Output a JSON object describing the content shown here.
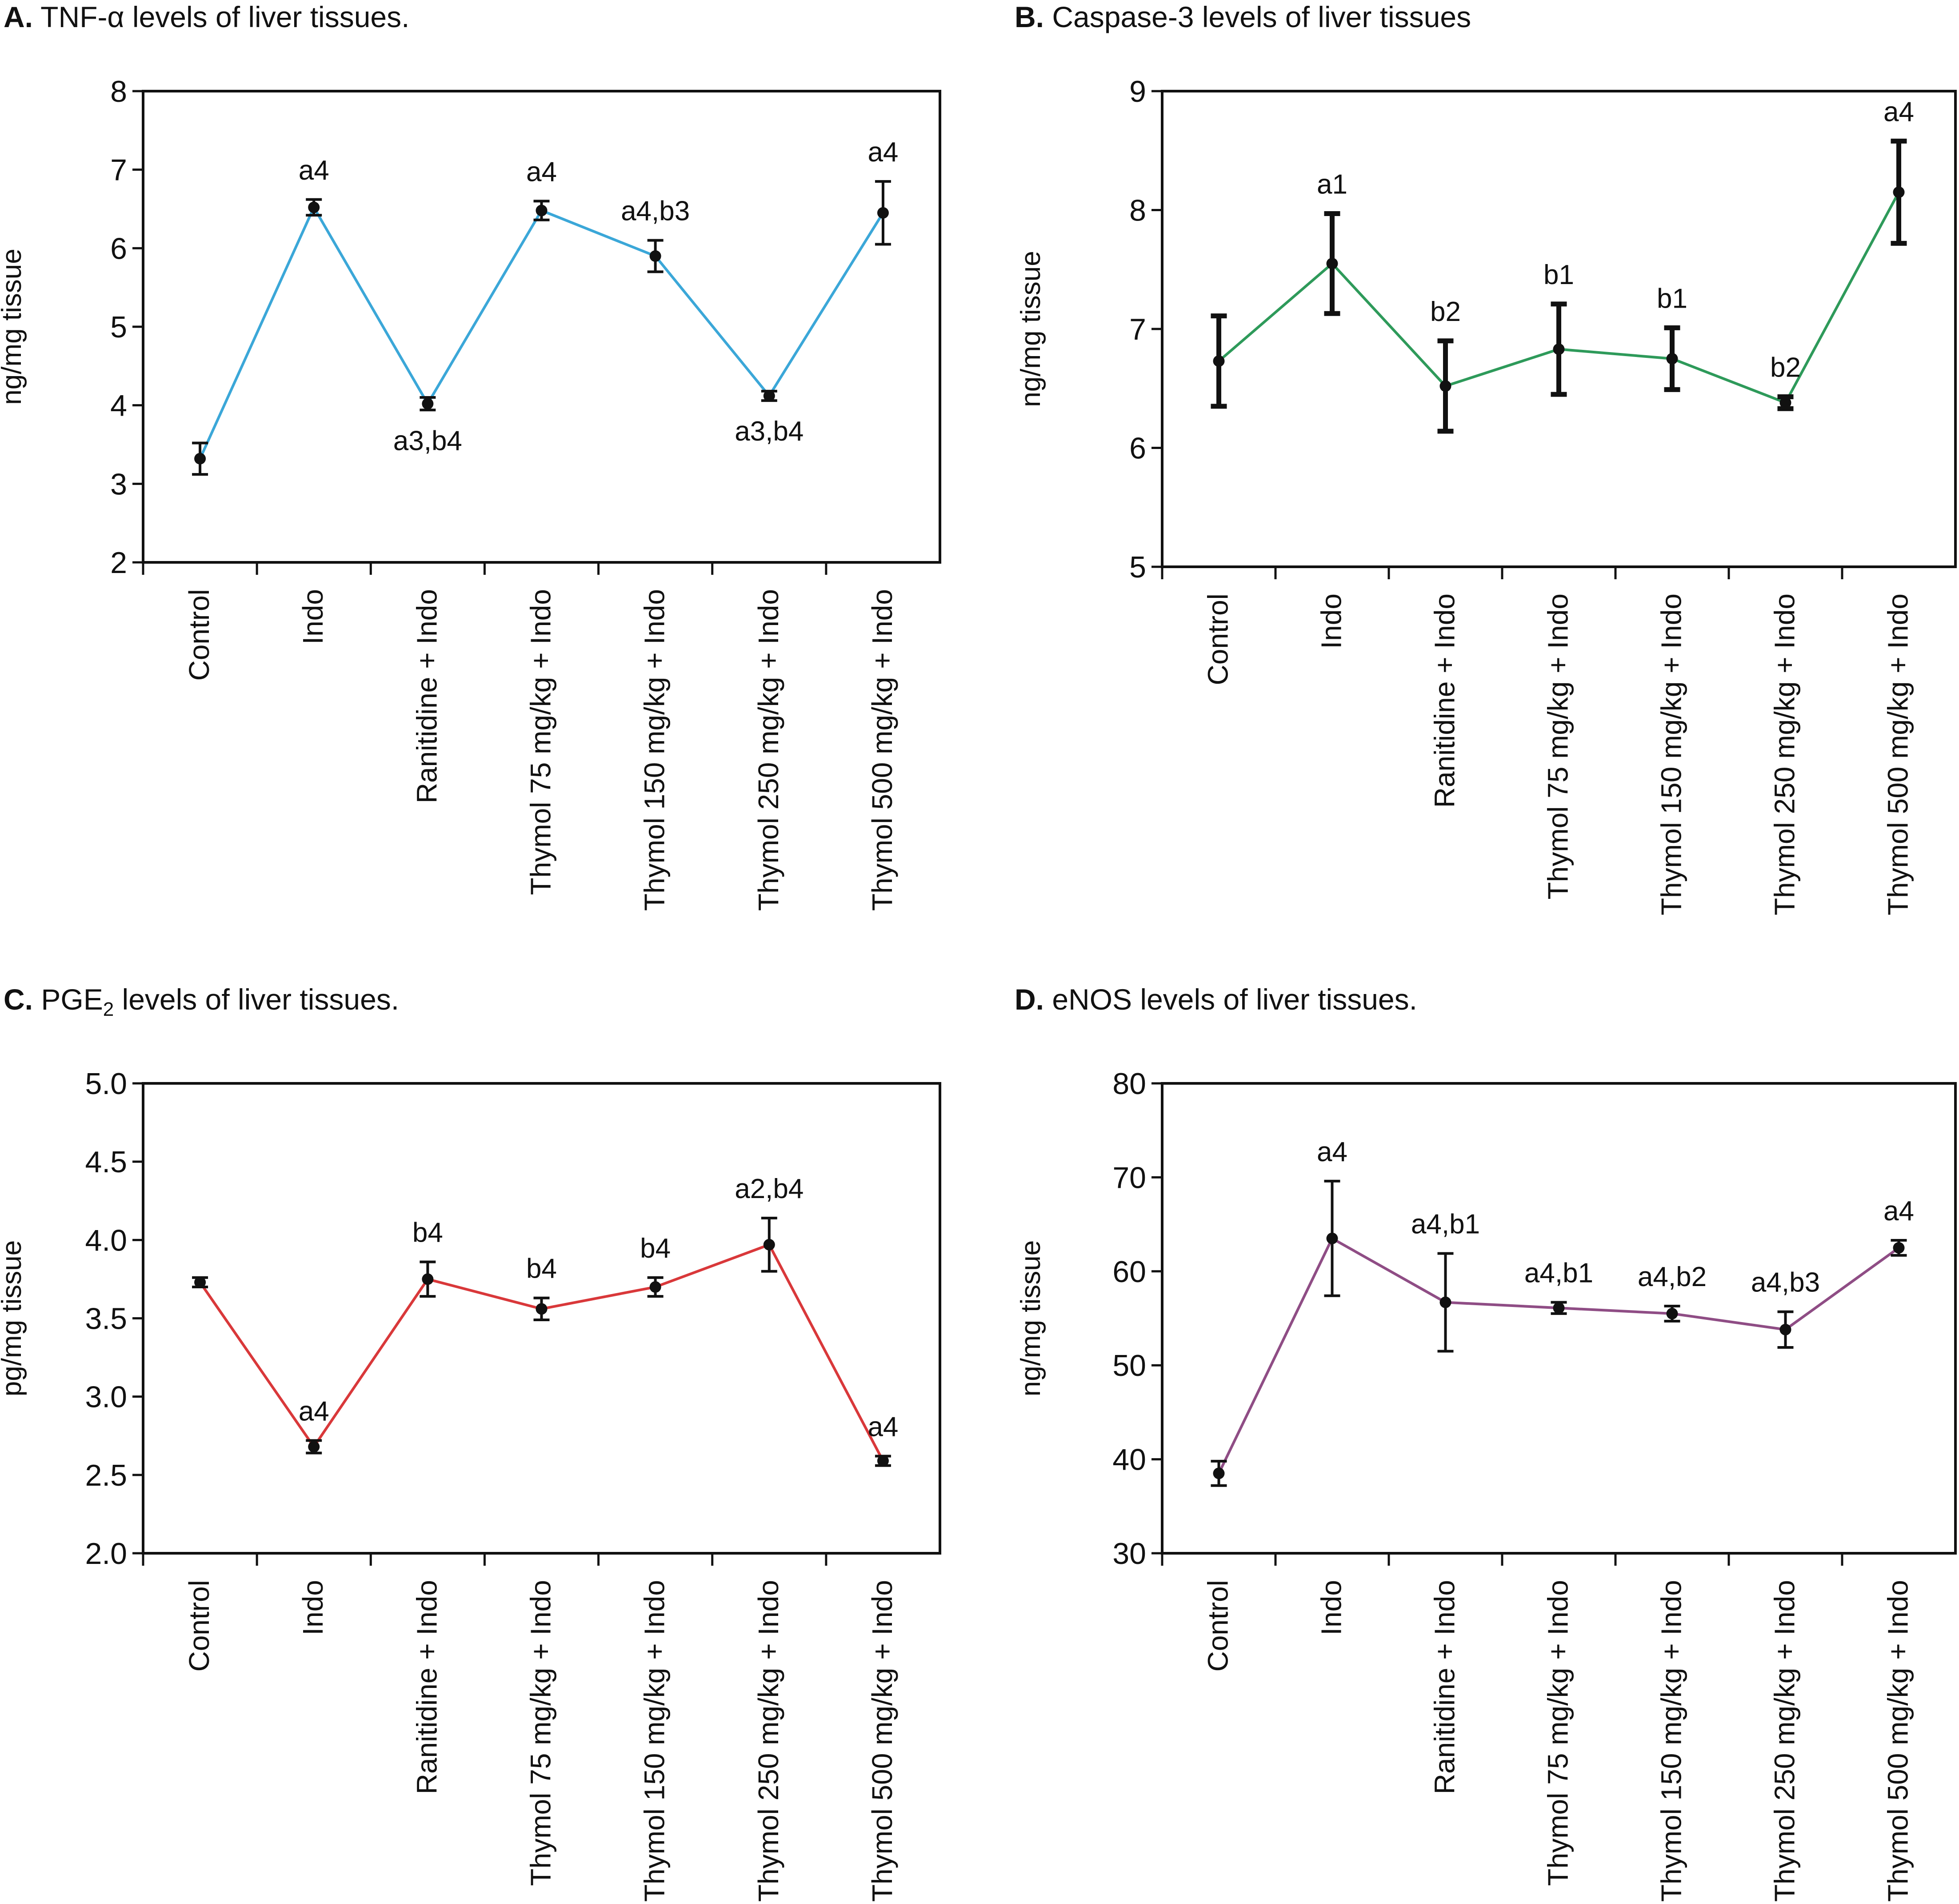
{
  "figure": {
    "panels": [
      {
        "letter": "A.",
        "title": "TNF-α levels of liver tissues."
      },
      {
        "letter": "B.",
        "title": "Caspase-3 levels of liver tissues"
      },
      {
        "letter": "C.",
        "title_main": "PGE",
        "title_sub": "2",
        "title_rest": " levels of liver tissues."
      },
      {
        "letter": "D.",
        "title": "eNOS levels of liver tissues."
      }
    ]
  },
  "chart_data": [
    {
      "type": "line",
      "title": "TNF-α levels of liver tissues.",
      "ylabel": "ng/mg tissue",
      "xlabel": "",
      "ylim": [
        2,
        8
      ],
      "yticks": [
        2,
        3,
        4,
        5,
        6,
        7,
        8
      ],
      "ytick_labels": [
        "2",
        "3",
        "4",
        "5",
        "6",
        "7",
        "8"
      ],
      "categories": [
        "Control",
        "Indo",
        "Ranitidine + Indo",
        "Thymol 75 mg/kg + Indo",
        "Thymol 150 mg/kg + Indo",
        "Thymol 250 mg/kg + Indo",
        "Thymol 500 mg/kg + Indo"
      ],
      "values": [
        3.32,
        6.52,
        4.02,
        6.48,
        5.9,
        4.12,
        6.45
      ],
      "errors": [
        0.2,
        0.1,
        0.08,
        0.12,
        0.2,
        0.06,
        0.4
      ],
      "annotations": [
        "",
        "a4",
        "a3,b4",
        "a4",
        "a4,b3",
        "a3,b4",
        "a4"
      ],
      "annotation_position": [
        "above",
        "above",
        "below",
        "above",
        "above",
        "below",
        "above"
      ],
      "line_color": "#3ba7d8",
      "errorbar_width": "thin",
      "grid": false
    },
    {
      "type": "line",
      "title": "Caspase-3 levels of liver tissues",
      "ylabel": "ng/mg tissue",
      "xlabel": "",
      "ylim": [
        5,
        9
      ],
      "yticks": [
        5,
        6,
        7,
        8,
        9
      ],
      "ytick_labels": [
        "5",
        "6",
        "7",
        "8",
        "9"
      ],
      "categories": [
        "Control",
        "Indo",
        "Ranitidine + Indo",
        "Thymol 75 mg/kg + Indo",
        "Thymol 150 mg/kg + Indo",
        "Thymol 250 mg/kg + Indo",
        "Thymol 500 mg/kg + Indo"
      ],
      "values": [
        6.73,
        7.55,
        6.52,
        6.83,
        6.75,
        6.38,
        8.15
      ],
      "errors": [
        0.38,
        0.42,
        0.38,
        0.38,
        0.26,
        0.05,
        0.43
      ],
      "annotations": [
        "",
        "a1",
        "b2",
        "b1",
        "b1",
        "b2",
        "a4"
      ],
      "annotation_position": [
        "above",
        "above",
        "above",
        "above",
        "above",
        "above",
        "above"
      ],
      "line_color": "#2e9a5a",
      "errorbar_width": "thick",
      "grid": false
    },
    {
      "type": "line",
      "title": "PGE2 levels of liver tissues.",
      "ylabel": "pg/mg tissue",
      "xlabel": "",
      "ylim": [
        2.0,
        5.0
      ],
      "yticks": [
        2.0,
        2.5,
        3.0,
        3.5,
        4.0,
        4.5,
        5.0
      ],
      "ytick_labels": [
        "2.0",
        "2.5",
        "3.0",
        "3.5",
        "4.0",
        "4.5",
        "5.0"
      ],
      "categories": [
        "Control",
        "Indo",
        "Ranitidine + Indo",
        "Thymol 75 mg/kg + Indo",
        "Thymol 150 mg/kg + Indo",
        "Thymol 250 mg/kg + Indo",
        "Thymol 500 mg/kg + Indo"
      ],
      "values": [
        3.73,
        2.68,
        3.75,
        3.56,
        3.7,
        3.97,
        2.59
      ],
      "errors": [
        0.03,
        0.04,
        0.11,
        0.07,
        0.06,
        0.17,
        0.03
      ],
      "annotations": [
        "",
        "a4",
        "b4",
        "b4",
        "b4",
        "a2,b4",
        "a4"
      ],
      "annotation_position": [
        "above",
        "above",
        "above",
        "above",
        "above",
        "above",
        "above"
      ],
      "line_color": "#d9383a",
      "errorbar_width": "thin",
      "grid": false
    },
    {
      "type": "line",
      "title": "eNOS levels of liver tissues.",
      "ylabel": "ng/mg tissue",
      "xlabel": "",
      "ylim": [
        30,
        80
      ],
      "yticks": [
        30,
        40,
        50,
        60,
        70,
        80
      ],
      "ytick_labels": [
        "30",
        "40",
        "50",
        "60",
        "70",
        "80"
      ],
      "categories": [
        "Control",
        "Indo",
        "Ranitidine + Indo",
        "Thymol 75 mg/kg + Indo",
        "Thymol 150 mg/kg + Indo",
        "Thymol 250 mg/kg + Indo",
        "Thymol 500 mg/kg + Indo"
      ],
      "values": [
        38.5,
        63.5,
        56.7,
        56.1,
        55.5,
        53.8,
        62.5
      ],
      "errors": [
        1.3,
        6.1,
        5.2,
        0.6,
        0.8,
        1.9,
        0.8
      ],
      "annotations": [
        "",
        "a4",
        "a4,b1",
        "a4,b1",
        "a4,b2",
        "a4,b3",
        "a4"
      ],
      "annotation_position": [
        "above",
        "above",
        "above",
        "above",
        "above",
        "above",
        "above"
      ],
      "line_color": "#8f4d85",
      "errorbar_width": "thin",
      "grid": false
    }
  ]
}
